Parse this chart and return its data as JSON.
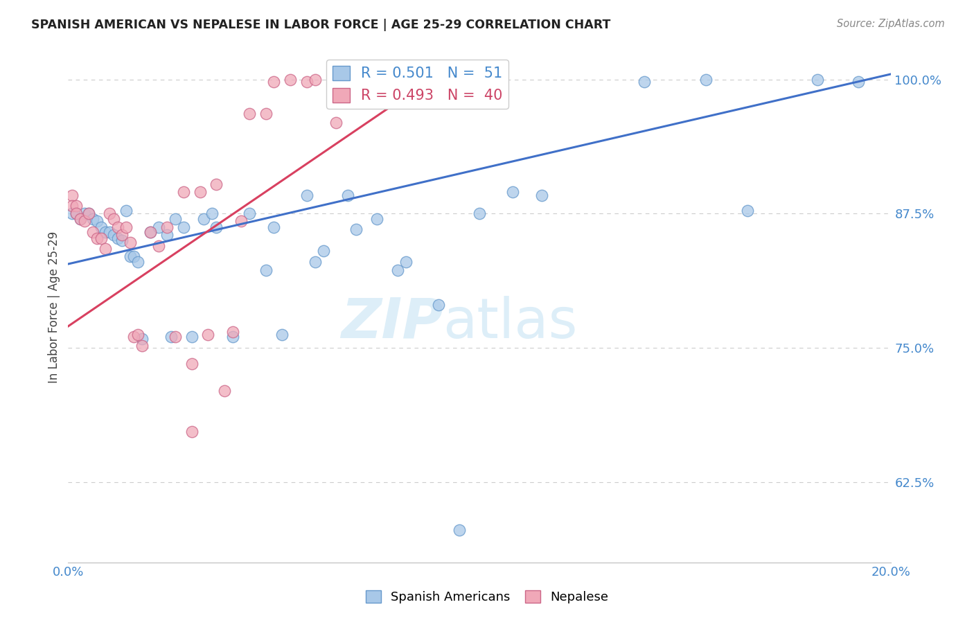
{
  "title": "SPANISH AMERICAN VS NEPALESE IN LABOR FORCE | AGE 25-29 CORRELATION CHART",
  "source": "Source: ZipAtlas.com",
  "ylabel": "In Labor Force | Age 25-29",
  "xlim": [
    0.0,
    0.2
  ],
  "ylim": [
    0.55,
    1.025
  ],
  "yticks": [
    0.625,
    0.75,
    0.875,
    1.0
  ],
  "ytick_labels": [
    "62.5%",
    "75.0%",
    "87.5%",
    "100.0%"
  ],
  "xticks": [
    0.0,
    0.04,
    0.08,
    0.12,
    0.16,
    0.2
  ],
  "xtick_labels": [
    "0.0%",
    "",
    "",
    "",
    "",
    "20.0%"
  ],
  "blue_color": "#a8c8e8",
  "pink_color": "#f0a8b8",
  "blue_line_color": "#4070c8",
  "pink_line_color": "#d84060",
  "legend_blue_R": "R = 0.501",
  "legend_blue_N": "N =  51",
  "legend_pink_R": "R = 0.493",
  "legend_pink_N": "N =  40",
  "watermark_zip": "ZIP",
  "watermark_atlas": "atlas",
  "blue_line": {
    "x0": 0.0,
    "y0": 0.828,
    "x1": 0.2,
    "y1": 1.005
  },
  "pink_line": {
    "x0": 0.0,
    "y0": 0.77,
    "x1": 0.09,
    "y1": 1.005
  },
  "blue_scatter_x": [
    0.001,
    0.002,
    0.003,
    0.004,
    0.005,
    0.006,
    0.007,
    0.008,
    0.009,
    0.01,
    0.011,
    0.012,
    0.013,
    0.014,
    0.015,
    0.016,
    0.017,
    0.018,
    0.02,
    0.022,
    0.024,
    0.026,
    0.028,
    0.03,
    0.033,
    0.036,
    0.04,
    0.044,
    0.048,
    0.052,
    0.058,
    0.062,
    0.068,
    0.075,
    0.082,
    0.09,
    0.1,
    0.108,
    0.14,
    0.155,
    0.165,
    0.182,
    0.192,
    0.06,
    0.08,
    0.095,
    0.035,
    0.05,
    0.025,
    0.07,
    0.115
  ],
  "blue_scatter_y": [
    0.875,
    0.875,
    0.87,
    0.875,
    0.875,
    0.87,
    0.868,
    0.862,
    0.858,
    0.858,
    0.855,
    0.852,
    0.85,
    0.878,
    0.835,
    0.835,
    0.83,
    0.758,
    0.858,
    0.862,
    0.855,
    0.87,
    0.862,
    0.76,
    0.87,
    0.862,
    0.76,
    0.875,
    0.822,
    0.762,
    0.892,
    0.84,
    0.892,
    0.87,
    0.83,
    0.79,
    0.875,
    0.895,
    0.998,
    1.0,
    0.878,
    1.0,
    0.998,
    0.83,
    0.822,
    0.58,
    0.875,
    0.862,
    0.76,
    0.86,
    0.892
  ],
  "pink_scatter_x": [
    0.001,
    0.001,
    0.002,
    0.002,
    0.003,
    0.004,
    0.005,
    0.006,
    0.007,
    0.008,
    0.009,
    0.01,
    0.011,
    0.012,
    0.013,
    0.014,
    0.015,
    0.016,
    0.017,
    0.018,
    0.02,
    0.022,
    0.024,
    0.026,
    0.028,
    0.03,
    0.032,
    0.034,
    0.036,
    0.038,
    0.04,
    0.042,
    0.044,
    0.048,
    0.05,
    0.054,
    0.058,
    0.06,
    0.065,
    0.03
  ],
  "pink_scatter_y": [
    0.892,
    0.882,
    0.882,
    0.875,
    0.87,
    0.868,
    0.875,
    0.858,
    0.852,
    0.852,
    0.842,
    0.875,
    0.87,
    0.862,
    0.855,
    0.862,
    0.848,
    0.76,
    0.762,
    0.752,
    0.858,
    0.845,
    0.862,
    0.76,
    0.895,
    0.735,
    0.895,
    0.762,
    0.902,
    0.71,
    0.765,
    0.868,
    0.968,
    0.968,
    0.998,
    1.0,
    0.998,
    1.0,
    0.96,
    0.672
  ],
  "background_color": "#ffffff",
  "grid_color": "#cccccc"
}
